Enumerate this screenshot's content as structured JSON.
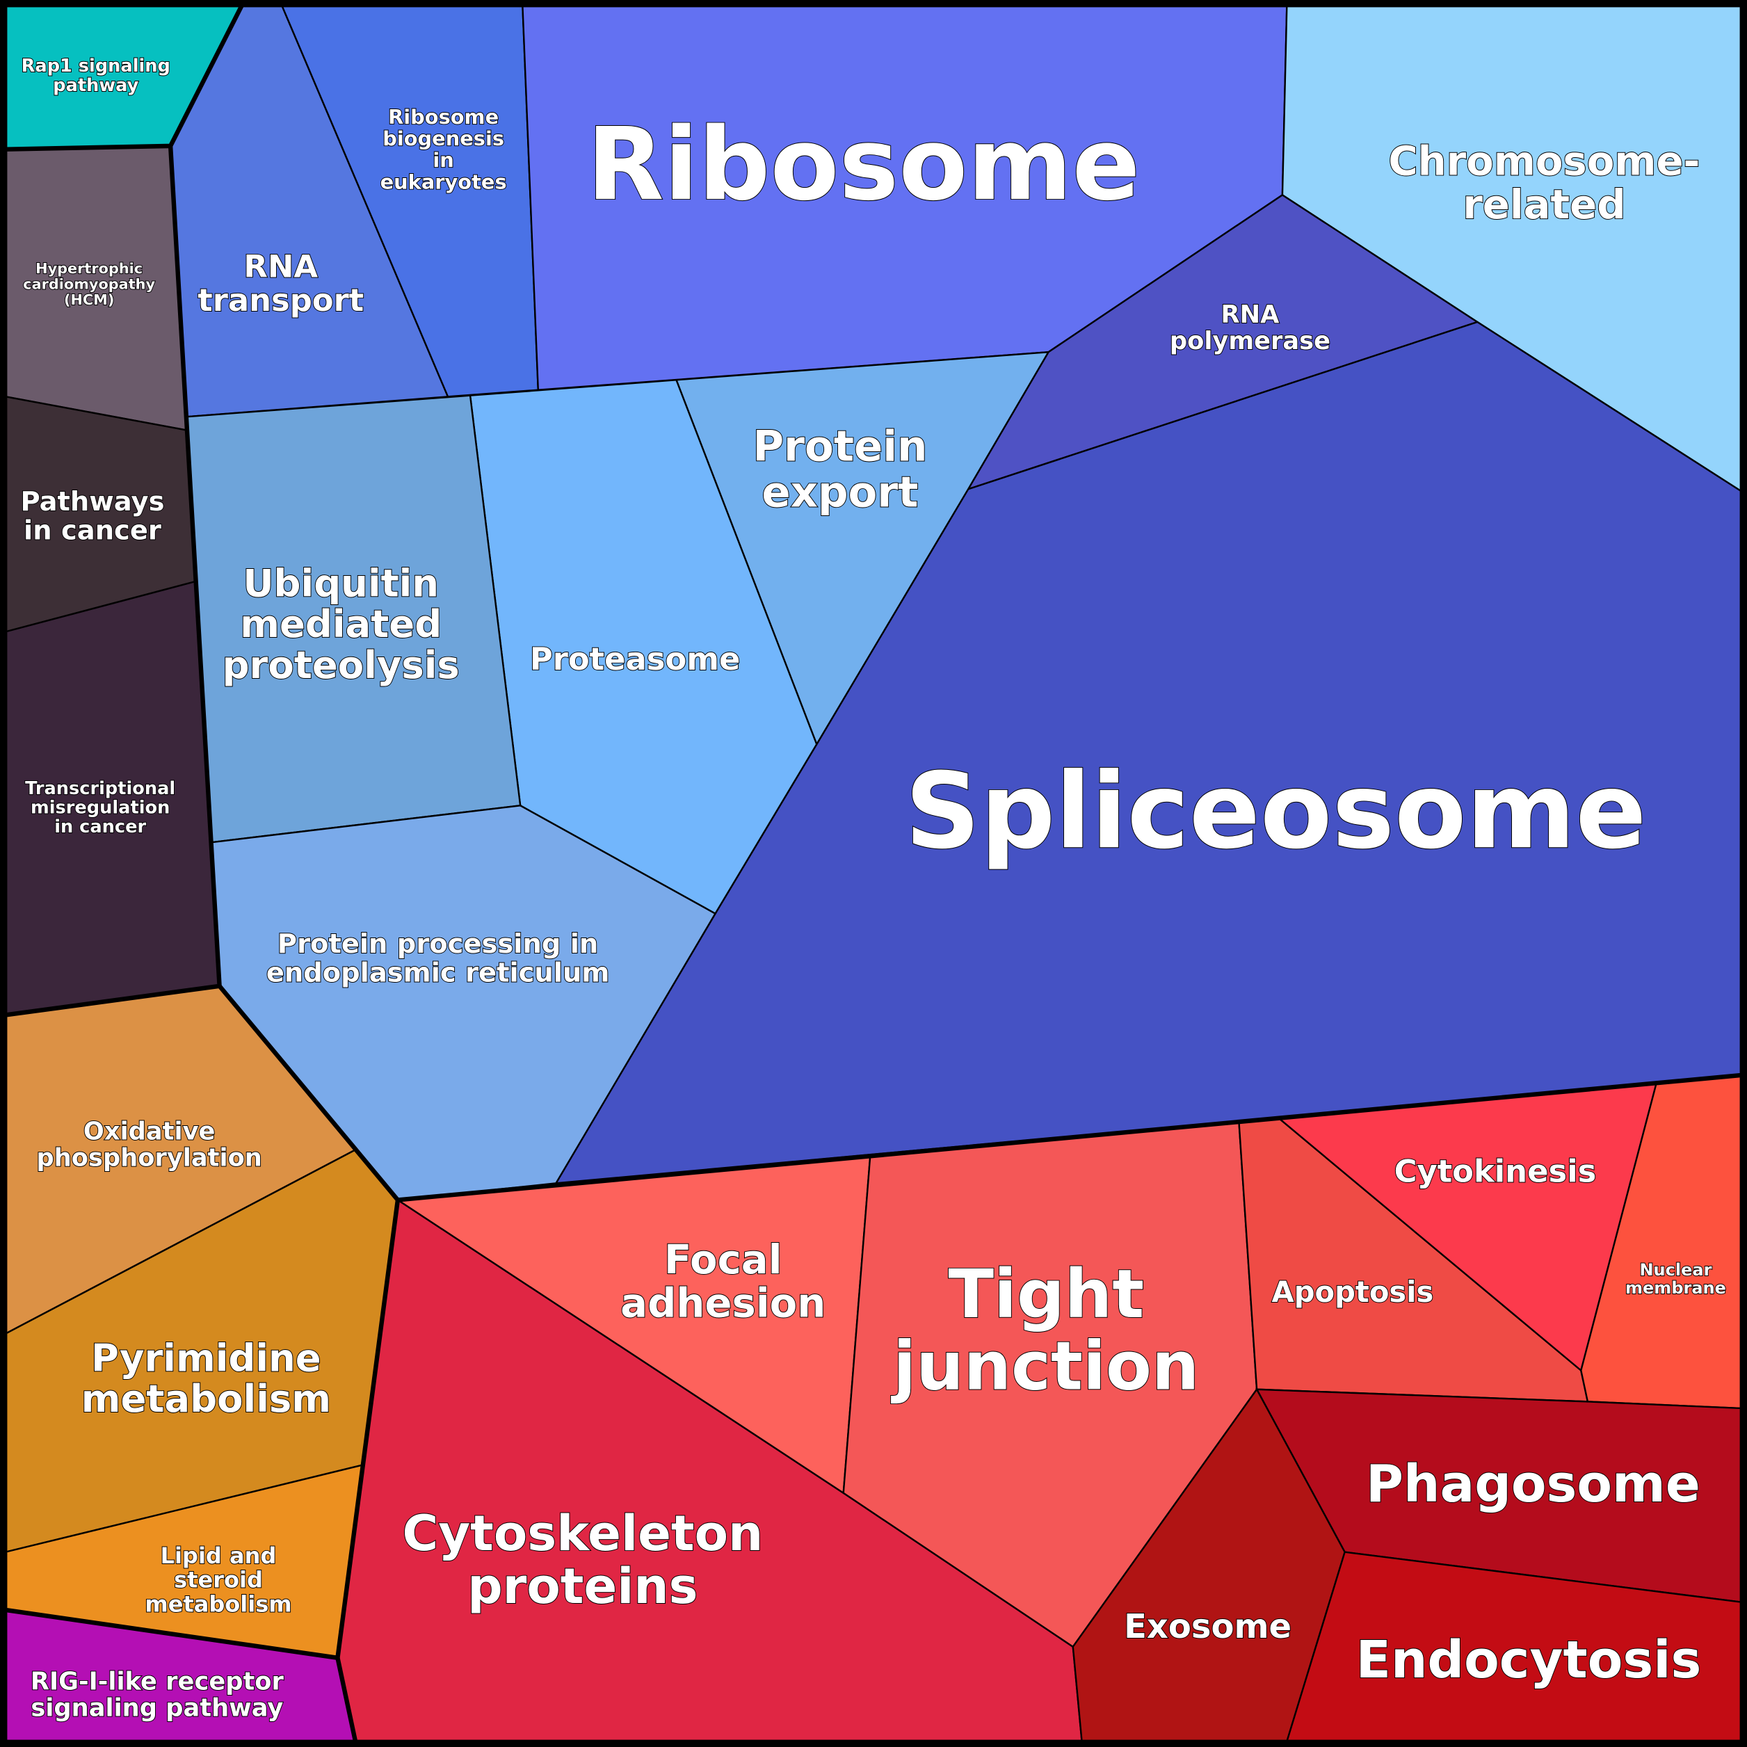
{
  "cells": [
    {
      "id": "rap1",
      "lines": [
        "Rap1 signaling",
        "pathway"
      ],
      "color": "#06c0c0"
    },
    {
      "id": "hcm",
      "lines": [
        "Hypertrophic",
        "cardiomyopathy",
        "(HCM)"
      ],
      "color": "#6b5b6b"
    },
    {
      "id": "pathways-cancer",
      "lines": [
        "Pathways",
        "in cancer"
      ],
      "color": "#3d2f36"
    },
    {
      "id": "transcriptional",
      "lines": [
        "Transcriptional",
        "misregulation",
        "in cancer"
      ],
      "color": "#3b263b"
    },
    {
      "id": "oxidative",
      "lines": [
        "Oxidative",
        "phosphorylation"
      ],
      "color": "#dc9145"
    },
    {
      "id": "pyrimidine",
      "lines": [
        "Pyrimidine",
        "metabolism"
      ],
      "color": "#d48a1f"
    },
    {
      "id": "lipid",
      "lines": [
        "Lipid and",
        "steroid",
        "metabolism"
      ],
      "color": "#ec9020"
    },
    {
      "id": "rig-i",
      "lines": [
        "RIG-I-like receptor",
        "signaling pathway"
      ],
      "color": "#b40fb4"
    },
    {
      "id": "rna-transport",
      "lines": [
        "RNA",
        "transport"
      ],
      "color": "#5577e0"
    },
    {
      "id": "ribosome-biogenesis",
      "lines": [
        "Ribosome",
        "biogenesis",
        "in",
        "eukaryotes"
      ],
      "color": "#4a72e6"
    },
    {
      "id": "ribosome",
      "lines": [
        "Ribosome"
      ],
      "color": "#6371f2"
    },
    {
      "id": "chromosome",
      "lines": [
        "Chromosome-",
        "related"
      ],
      "color": "#94d4fc"
    },
    {
      "id": "rna-polymerase",
      "lines": [
        "RNA",
        "polymerase"
      ],
      "color": "#4f52c4"
    },
    {
      "id": "spliceosome",
      "lines": [
        "Spliceosome"
      ],
      "color": "#4552c4"
    },
    {
      "id": "protein-export",
      "lines": [
        "Protein",
        "export"
      ],
      "color": "#72b0ee"
    },
    {
      "id": "proteasome",
      "lines": [
        "Proteasome"
      ],
      "color": "#72b6fc"
    },
    {
      "id": "ubiquitin",
      "lines": [
        "Ubiquitin",
        "mediated",
        "proteolysis"
      ],
      "color": "#6ea4da"
    },
    {
      "id": "protein-processing",
      "lines": [
        "Protein processing in",
        "endoplasmic reticulum"
      ],
      "color": "#7aaaea"
    },
    {
      "id": "cytoskeleton",
      "lines": [
        "Cytoskeleton",
        "proteins"
      ],
      "color": "#e02644"
    },
    {
      "id": "focal-adhesion",
      "lines": [
        "Focal",
        "adhesion"
      ],
      "color": "#fd625c"
    },
    {
      "id": "tight-junction",
      "lines": [
        "Tight",
        "junction"
      ],
      "color": "#f45757"
    },
    {
      "id": "apoptosis",
      "lines": [
        "Apoptosis"
      ],
      "color": "#ef4b45"
    },
    {
      "id": "cytokinesis",
      "lines": [
        "Cytokinesis"
      ],
      "color": "#fc3a4c"
    },
    {
      "id": "nuclear-membrane",
      "lines": [
        "Nuclear",
        "membrane"
      ],
      "color": "#fd523e"
    },
    {
      "id": "phagosome",
      "lines": [
        "Phagosome"
      ],
      "color": "#b40c1c"
    },
    {
      "id": "exosome",
      "lines": [
        "Exosome"
      ],
      "color": "#b01414"
    },
    {
      "id": "endocytosis",
      "lines": [
        "Endocytosis"
      ],
      "color": "#c30c14"
    }
  ]
}
